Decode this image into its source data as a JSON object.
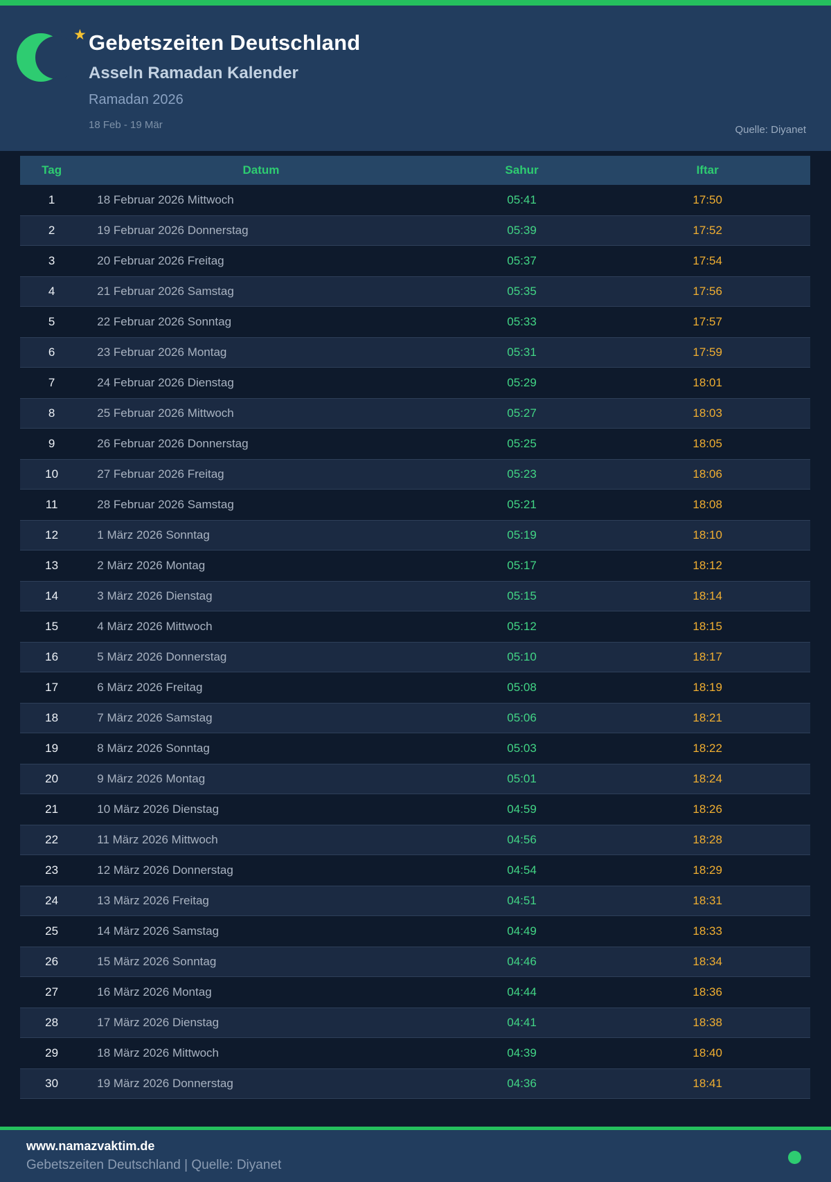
{
  "colors": {
    "accent_green": "#2ecc71",
    "sahur_green": "#42d585",
    "iftar_yellow": "#f0ae31",
    "header_navy": "#223d5e",
    "page_navy": "#0e1a2c"
  },
  "header": {
    "title": "Gebetszeiten Deutschland",
    "subtitle": "Asseln Ramadan Kalender",
    "period": "Ramadan 2026",
    "date_range": "18 Feb - 19 Mär",
    "source": "Quelle: Diyanet"
  },
  "table": {
    "columns": [
      "Tag",
      "Datum",
      "Sahur",
      "Iftar"
    ],
    "rows": [
      {
        "tag": "1",
        "datum": "18 Februar 2026 Mittwoch",
        "sahur": "05:41",
        "iftar": "17:50"
      },
      {
        "tag": "2",
        "datum": "19 Februar 2026 Donnerstag",
        "sahur": "05:39",
        "iftar": "17:52"
      },
      {
        "tag": "3",
        "datum": "20 Februar 2026 Freitag",
        "sahur": "05:37",
        "iftar": "17:54"
      },
      {
        "tag": "4",
        "datum": "21 Februar 2026 Samstag",
        "sahur": "05:35",
        "iftar": "17:56"
      },
      {
        "tag": "5",
        "datum": "22 Februar 2026 Sonntag",
        "sahur": "05:33",
        "iftar": "17:57"
      },
      {
        "tag": "6",
        "datum": "23 Februar 2026 Montag",
        "sahur": "05:31",
        "iftar": "17:59"
      },
      {
        "tag": "7",
        "datum": "24 Februar 2026 Dienstag",
        "sahur": "05:29",
        "iftar": "18:01"
      },
      {
        "tag": "8",
        "datum": "25 Februar 2026 Mittwoch",
        "sahur": "05:27",
        "iftar": "18:03"
      },
      {
        "tag": "9",
        "datum": "26 Februar 2026 Donnerstag",
        "sahur": "05:25",
        "iftar": "18:05"
      },
      {
        "tag": "10",
        "datum": "27 Februar 2026 Freitag",
        "sahur": "05:23",
        "iftar": "18:06"
      },
      {
        "tag": "11",
        "datum": "28 Februar 2026 Samstag",
        "sahur": "05:21",
        "iftar": "18:08"
      },
      {
        "tag": "12",
        "datum": "1 März 2026 Sonntag",
        "sahur": "05:19",
        "iftar": "18:10"
      },
      {
        "tag": "13",
        "datum": "2 März 2026 Montag",
        "sahur": "05:17",
        "iftar": "18:12"
      },
      {
        "tag": "14",
        "datum": "3 März 2026 Dienstag",
        "sahur": "05:15",
        "iftar": "18:14"
      },
      {
        "tag": "15",
        "datum": "4 März 2026 Mittwoch",
        "sahur": "05:12",
        "iftar": "18:15"
      },
      {
        "tag": "16",
        "datum": "5 März 2026 Donnerstag",
        "sahur": "05:10",
        "iftar": "18:17"
      },
      {
        "tag": "17",
        "datum": "6 März 2026 Freitag",
        "sahur": "05:08",
        "iftar": "18:19"
      },
      {
        "tag": "18",
        "datum": "7 März 2026 Samstag",
        "sahur": "05:06",
        "iftar": "18:21"
      },
      {
        "tag": "19",
        "datum": "8 März 2026 Sonntag",
        "sahur": "05:03",
        "iftar": "18:22"
      },
      {
        "tag": "20",
        "datum": "9 März 2026 Montag",
        "sahur": "05:01",
        "iftar": "18:24"
      },
      {
        "tag": "21",
        "datum": "10 März 2026 Dienstag",
        "sahur": "04:59",
        "iftar": "18:26"
      },
      {
        "tag": "22",
        "datum": "11 März 2026 Mittwoch",
        "sahur": "04:56",
        "iftar": "18:28"
      },
      {
        "tag": "23",
        "datum": "12 März 2026 Donnerstag",
        "sahur": "04:54",
        "iftar": "18:29"
      },
      {
        "tag": "24",
        "datum": "13 März 2026 Freitag",
        "sahur": "04:51",
        "iftar": "18:31"
      },
      {
        "tag": "25",
        "datum": "14 März 2026 Samstag",
        "sahur": "04:49",
        "iftar": "18:33"
      },
      {
        "tag": "26",
        "datum": "15 März 2026 Sonntag",
        "sahur": "04:46",
        "iftar": "18:34"
      },
      {
        "tag": "27",
        "datum": "16 März 2026 Montag",
        "sahur": "04:44",
        "iftar": "18:36"
      },
      {
        "tag": "28",
        "datum": "17 März 2026 Dienstag",
        "sahur": "04:41",
        "iftar": "18:38"
      },
      {
        "tag": "29",
        "datum": "18 März 2026 Mittwoch",
        "sahur": "04:39",
        "iftar": "18:40"
      },
      {
        "tag": "30",
        "datum": "19 März 2026 Donnerstag",
        "sahur": "04:36",
        "iftar": "18:41"
      }
    ]
  },
  "footer": {
    "website": "www.namazvaktim.de",
    "tagline": "Gebetszeiten Deutschland | Quelle: Diyanet"
  }
}
